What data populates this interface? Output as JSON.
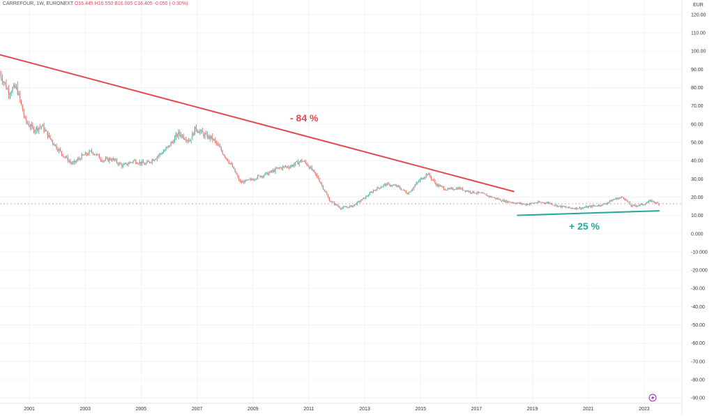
{
  "header": {
    "symbol_line": "CARREFOUR, 1W, EURONEXT",
    "open": "O16.445",
    "high": "H16.550",
    "low": "B16.005",
    "close": "C16.405",
    "change": "-0.050 (-0.30%)"
  },
  "currency": "EUR",
  "annotations": {
    "decline_label": "- 84 %",
    "rise_label": "+ 25 %"
  },
  "colors": {
    "down_trend": "#e5484d",
    "up_trend": "#26a69a",
    "candle_up": "#26a69a",
    "candle_down": "#ef5350",
    "grid": "#f0f3fa",
    "axis_text": "#333333",
    "price_line": "#ef9a9a"
  },
  "chart_data": {
    "type": "line",
    "title": "CARREFOUR, 1W, EURONEXT",
    "y_tick_labels": [
      "120.00",
      "110.00",
      "100.00",
      "90.00",
      "80.00",
      "70.00",
      "60.00",
      "50.00",
      "40.00",
      "30.00",
      "20.00",
      "10.00",
      "0.000",
      "-10.000",
      "-20.000",
      "-30.00",
      "-40.00",
      "-50.00",
      "-60.00",
      "-70.00",
      "-80.00",
      "-90.00"
    ],
    "x_tick_labels": [
      "2001",
      "2003",
      "2005",
      "2007",
      "2009",
      "2011",
      "2013",
      "2015",
      "2017",
      "2019",
      "2021",
      "2023"
    ],
    "ylim": [
      -93,
      128
    ],
    "xlim": [
      2000.0,
      2024.4
    ],
    "grid": true,
    "series": [
      {
        "x": [
          2000.0,
          2000.3,
          2000.6,
          2000.9,
          2001.2,
          2001.5,
          2001.8,
          2002.2,
          2002.6,
          2002.9,
          2003.3,
          2003.7,
          2004.0,
          2004.4,
          2004.8,
          2005.2,
          2005.6,
          2006.0,
          2006.4,
          2006.8,
          2007.0,
          2007.3,
          2007.6,
          2007.9,
          2008.3,
          2008.6,
          2008.9,
          2009.2,
          2009.6,
          2010.0,
          2010.4,
          2010.8,
          2011.0,
          2011.4,
          2011.8,
          2012.2,
          2012.6,
          2013.0,
          2013.4,
          2013.8,
          2014.2,
          2014.6,
          2015.0,
          2015.3,
          2015.6,
          2016.0,
          2016.4,
          2016.8,
          2017.2,
          2017.6,
          2018.0,
          2018.4,
          2018.8,
          2019.2,
          2019.6,
          2020.0,
          2020.4,
          2020.8,
          2021.2,
          2021.6,
          2022.0,
          2022.3,
          2022.6,
          2023.0,
          2023.3,
          2023.6
        ],
        "y": [
          88,
          78,
          80,
          62,
          57,
          59,
          52,
          44,
          38,
          42,
          45,
          40,
          41,
          37,
          40,
          38,
          42,
          47,
          55,
          51,
          58,
          54,
          52,
          46,
          37,
          28,
          29,
          31,
          33,
          36,
          37,
          40,
          38,
          30,
          18,
          14,
          15,
          19,
          24,
          27,
          26,
          22,
          29,
          33,
          27,
          24,
          25,
          23,
          22,
          20,
          18,
          17,
          16,
          17,
          17,
          15,
          14,
          14,
          15,
          16,
          19,
          20,
          15,
          16,
          18,
          16
        ]
      }
    ],
    "trendlines": [
      {
        "name": "- 84 %",
        "x": [
          2000.0,
          2018.4
        ],
        "y": [
          98,
          23
        ]
      },
      {
        "name": "+ 25 %",
        "x": [
          2018.5,
          2023.6
        ],
        "y": [
          10,
          12.5
        ]
      }
    ],
    "last_price": 16.405
  }
}
